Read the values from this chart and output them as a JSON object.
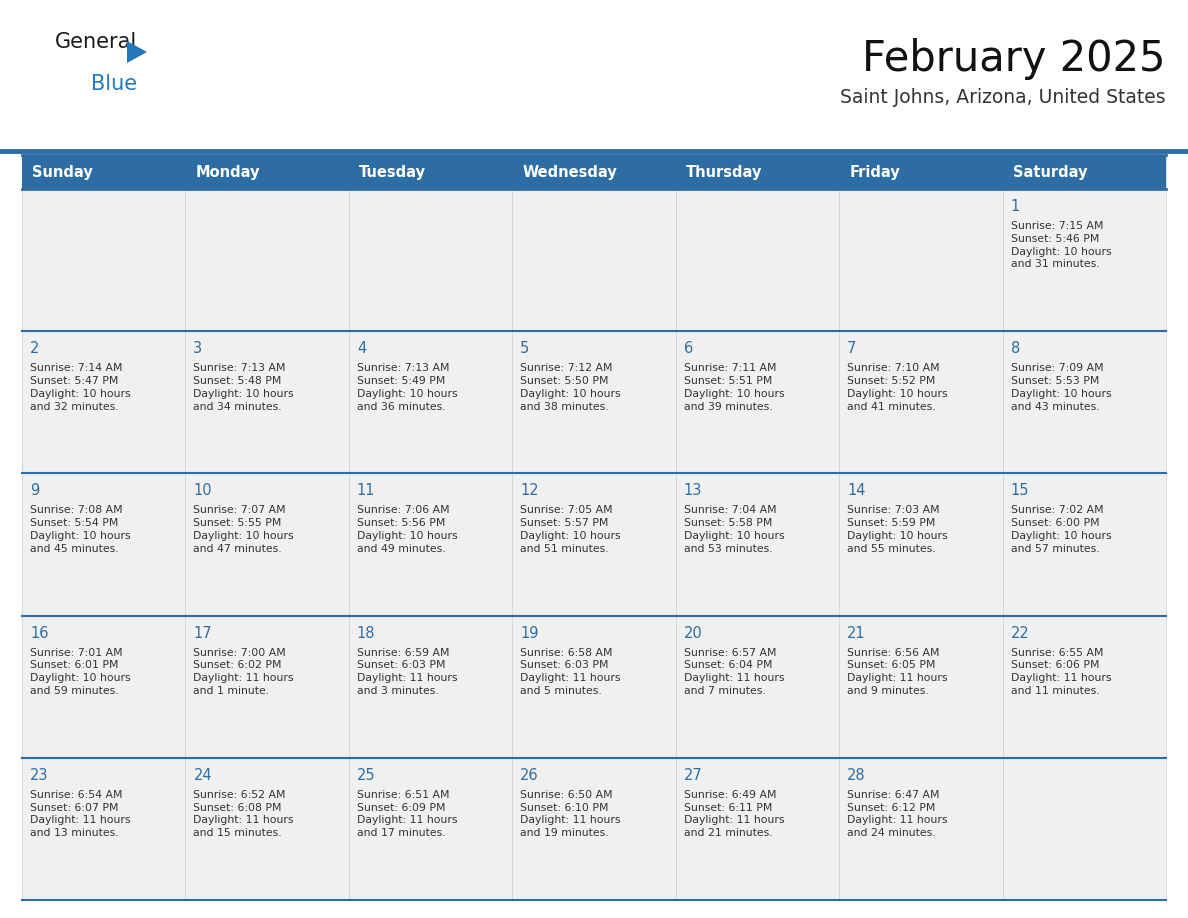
{
  "title": "February 2025",
  "subtitle": "Saint Johns, Arizona, United States",
  "header_bg": "#2E6DA4",
  "header_text_color": "#FFFFFF",
  "cell_bg": "#F0F0F0",
  "day_number_color": "#2E6DA4",
  "cell_text_color": "#333333",
  "border_color": "#2E6DA4",
  "days_of_week": [
    "Sunday",
    "Monday",
    "Tuesday",
    "Wednesday",
    "Thursday",
    "Friday",
    "Saturday"
  ],
  "weeks": [
    [
      {
        "day": null,
        "info": null
      },
      {
        "day": null,
        "info": null
      },
      {
        "day": null,
        "info": null
      },
      {
        "day": null,
        "info": null
      },
      {
        "day": null,
        "info": null
      },
      {
        "day": null,
        "info": null
      },
      {
        "day": 1,
        "info": "Sunrise: 7:15 AM\nSunset: 5:46 PM\nDaylight: 10 hours\nand 31 minutes."
      }
    ],
    [
      {
        "day": 2,
        "info": "Sunrise: 7:14 AM\nSunset: 5:47 PM\nDaylight: 10 hours\nand 32 minutes."
      },
      {
        "day": 3,
        "info": "Sunrise: 7:13 AM\nSunset: 5:48 PM\nDaylight: 10 hours\nand 34 minutes."
      },
      {
        "day": 4,
        "info": "Sunrise: 7:13 AM\nSunset: 5:49 PM\nDaylight: 10 hours\nand 36 minutes."
      },
      {
        "day": 5,
        "info": "Sunrise: 7:12 AM\nSunset: 5:50 PM\nDaylight: 10 hours\nand 38 minutes."
      },
      {
        "day": 6,
        "info": "Sunrise: 7:11 AM\nSunset: 5:51 PM\nDaylight: 10 hours\nand 39 minutes."
      },
      {
        "day": 7,
        "info": "Sunrise: 7:10 AM\nSunset: 5:52 PM\nDaylight: 10 hours\nand 41 minutes."
      },
      {
        "day": 8,
        "info": "Sunrise: 7:09 AM\nSunset: 5:53 PM\nDaylight: 10 hours\nand 43 minutes."
      }
    ],
    [
      {
        "day": 9,
        "info": "Sunrise: 7:08 AM\nSunset: 5:54 PM\nDaylight: 10 hours\nand 45 minutes."
      },
      {
        "day": 10,
        "info": "Sunrise: 7:07 AM\nSunset: 5:55 PM\nDaylight: 10 hours\nand 47 minutes."
      },
      {
        "day": 11,
        "info": "Sunrise: 7:06 AM\nSunset: 5:56 PM\nDaylight: 10 hours\nand 49 minutes."
      },
      {
        "day": 12,
        "info": "Sunrise: 7:05 AM\nSunset: 5:57 PM\nDaylight: 10 hours\nand 51 minutes."
      },
      {
        "day": 13,
        "info": "Sunrise: 7:04 AM\nSunset: 5:58 PM\nDaylight: 10 hours\nand 53 minutes."
      },
      {
        "day": 14,
        "info": "Sunrise: 7:03 AM\nSunset: 5:59 PM\nDaylight: 10 hours\nand 55 minutes."
      },
      {
        "day": 15,
        "info": "Sunrise: 7:02 AM\nSunset: 6:00 PM\nDaylight: 10 hours\nand 57 minutes."
      }
    ],
    [
      {
        "day": 16,
        "info": "Sunrise: 7:01 AM\nSunset: 6:01 PM\nDaylight: 10 hours\nand 59 minutes."
      },
      {
        "day": 17,
        "info": "Sunrise: 7:00 AM\nSunset: 6:02 PM\nDaylight: 11 hours\nand 1 minute."
      },
      {
        "day": 18,
        "info": "Sunrise: 6:59 AM\nSunset: 6:03 PM\nDaylight: 11 hours\nand 3 minutes."
      },
      {
        "day": 19,
        "info": "Sunrise: 6:58 AM\nSunset: 6:03 PM\nDaylight: 11 hours\nand 5 minutes."
      },
      {
        "day": 20,
        "info": "Sunrise: 6:57 AM\nSunset: 6:04 PM\nDaylight: 11 hours\nand 7 minutes."
      },
      {
        "day": 21,
        "info": "Sunrise: 6:56 AM\nSunset: 6:05 PM\nDaylight: 11 hours\nand 9 minutes."
      },
      {
        "day": 22,
        "info": "Sunrise: 6:55 AM\nSunset: 6:06 PM\nDaylight: 11 hours\nand 11 minutes."
      }
    ],
    [
      {
        "day": 23,
        "info": "Sunrise: 6:54 AM\nSunset: 6:07 PM\nDaylight: 11 hours\nand 13 minutes."
      },
      {
        "day": 24,
        "info": "Sunrise: 6:52 AM\nSunset: 6:08 PM\nDaylight: 11 hours\nand 15 minutes."
      },
      {
        "day": 25,
        "info": "Sunrise: 6:51 AM\nSunset: 6:09 PM\nDaylight: 11 hours\nand 17 minutes."
      },
      {
        "day": 26,
        "info": "Sunrise: 6:50 AM\nSunset: 6:10 PM\nDaylight: 11 hours\nand 19 minutes."
      },
      {
        "day": 27,
        "info": "Sunrise: 6:49 AM\nSunset: 6:11 PM\nDaylight: 11 hours\nand 21 minutes."
      },
      {
        "day": 28,
        "info": "Sunrise: 6:47 AM\nSunset: 6:12 PM\nDaylight: 11 hours\nand 24 minutes."
      },
      {
        "day": null,
        "info": null
      }
    ]
  ],
  "logo_color_general": "#1a1a1a",
  "logo_color_blue": "#2479BD",
  "logo_triangle_color": "#2479BD",
  "fig_width": 11.88,
  "fig_height": 9.18,
  "bg_color": "#FFFFFF"
}
